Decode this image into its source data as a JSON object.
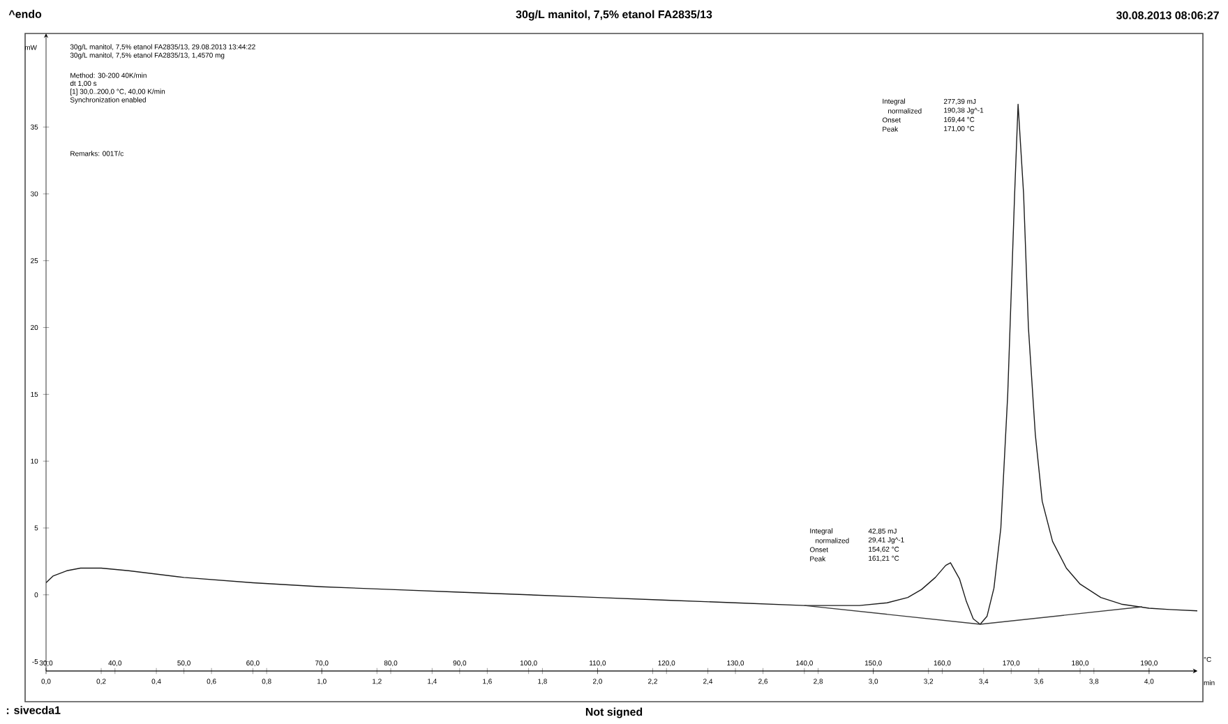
{
  "chart_data": {
    "type": "line",
    "title": "30g/L manitol, 7,5% etanol FA2835/13",
    "ylabel": "mW",
    "xlabel": "°C",
    "x2label": "min",
    "xlim": [
      30,
      197
    ],
    "x2lim": [
      0,
      4.175
    ],
    "ylim": [
      -5.7,
      42
    ],
    "xticks": [
      {
        "value": 30,
        "label": "30,0"
      },
      {
        "value": 40,
        "label": "40,0"
      },
      {
        "value": 50,
        "label": "50,0"
      },
      {
        "value": 60,
        "label": "60,0"
      },
      {
        "value": 70,
        "label": "70,0"
      },
      {
        "value": 80,
        "label": "80,0"
      },
      {
        "value": 90,
        "label": "90,0"
      },
      {
        "value": 100,
        "label": "100,0"
      },
      {
        "value": 110,
        "label": "110,0"
      },
      {
        "value": 120,
        "label": "120,0"
      },
      {
        "value": 130,
        "label": "130,0"
      },
      {
        "value": 140,
        "label": "140,0"
      },
      {
        "value": 150,
        "label": "150,0"
      },
      {
        "value": 160,
        "label": "160,0"
      },
      {
        "value": 170,
        "label": "170,0"
      },
      {
        "value": 180,
        "label": "180,0"
      },
      {
        "value": 190,
        "label": "190,0"
      }
    ],
    "x2ticks": [
      {
        "value": 0,
        "label": "0,0"
      },
      {
        "value": 0.2,
        "label": "0,2"
      },
      {
        "value": 0.4,
        "label": "0,4"
      },
      {
        "value": 0.6,
        "label": "0,6"
      },
      {
        "value": 0.8,
        "label": "0,8"
      },
      {
        "value": 1.0,
        "label": "1,0"
      },
      {
        "value": 1.2,
        "label": "1,2"
      },
      {
        "value": 1.4,
        "label": "1,4"
      },
      {
        "value": 1.6,
        "label": "1,6"
      },
      {
        "value": 1.8,
        "label": "1,8"
      },
      {
        "value": 2.0,
        "label": "2,0"
      },
      {
        "value": 2.2,
        "label": "2,2"
      },
      {
        "value": 2.4,
        "label": "2,4"
      },
      {
        "value": 2.6,
        "label": "2,6"
      },
      {
        "value": 2.8,
        "label": "2,8"
      },
      {
        "value": 3.0,
        "label": "3,0"
      },
      {
        "value": 3.2,
        "label": "3,2"
      },
      {
        "value": 3.4,
        "label": "3,4"
      },
      {
        "value": 3.6,
        "label": "3,6"
      },
      {
        "value": 3.8,
        "label": "3,8"
      },
      {
        "value": 4.0,
        "label": "4,0"
      }
    ],
    "yticks": [
      -5,
      0,
      5,
      10,
      15,
      20,
      25,
      30,
      35
    ],
    "series": [
      {
        "color": "#1a1a1a",
        "x": [
          30,
          31,
          33,
          35,
          38,
          42,
          50,
          60,
          70,
          80,
          90,
          100,
          110,
          120,
          130,
          140,
          148,
          152,
          155,
          157,
          159,
          160.5,
          161.2,
          162.5,
          163.5,
          164.5,
          165.5,
          166.5,
          167.5,
          168.5,
          169.5,
          170.5,
          171.0,
          171.8,
          172.5,
          173.5,
          174.5,
          176,
          178,
          180,
          183,
          186,
          190,
          193,
          197
        ],
        "values": [
          0.9,
          1.4,
          1.8,
          2.0,
          2.0,
          1.8,
          1.3,
          0.9,
          0.6,
          0.4,
          0.2,
          0.0,
          -0.2,
          -0.4,
          -0.6,
          -0.8,
          -0.8,
          -0.6,
          -0.2,
          0.4,
          1.3,
          2.2,
          2.4,
          1.2,
          -0.5,
          -1.8,
          -2.2,
          -1.6,
          0.5,
          5,
          15,
          30,
          36.7,
          30,
          20,
          12,
          7,
          4,
          2,
          0.8,
          -0.2,
          -0.7,
          -1.0,
          -1.1,
          -1.2
        ]
      },
      {
        "color": "#3a3a3a",
        "x": [
          140,
          165.5,
          189
        ],
        "values": [
          -0.8,
          -2.2,
          -0.9
        ]
      }
    ],
    "annotations": [
      "^endo",
      "30.08.2013 08:06:27",
      "30g/L manitol, 7,5% etanol FA2835/13, 29.08.2013 13:44:22",
      "30g/L manitol, 7,5% etanol FA2835/13, 1,4570 mg",
      "Method: 30-200 40K/min",
      "dt 1,00 s",
      "[1] 30,0..200,0 °C, 40,00 K/min",
      "Synchronization enabled",
      "Remarks: 001T/c",
      "Integral",
      "42,85 mJ",
      "normalized",
      "29,41 Jg^-1",
      "Onset",
      "154,62 °C",
      "Peak",
      "161,21 °C",
      "Integral",
      "277,39 mJ",
      "normalized",
      "190,38 Jg^-1",
      "Onset",
      "169,44 °C",
      "Peak",
      "171,00 °C",
      ": sivecda1",
      "Not signed"
    ]
  }
}
